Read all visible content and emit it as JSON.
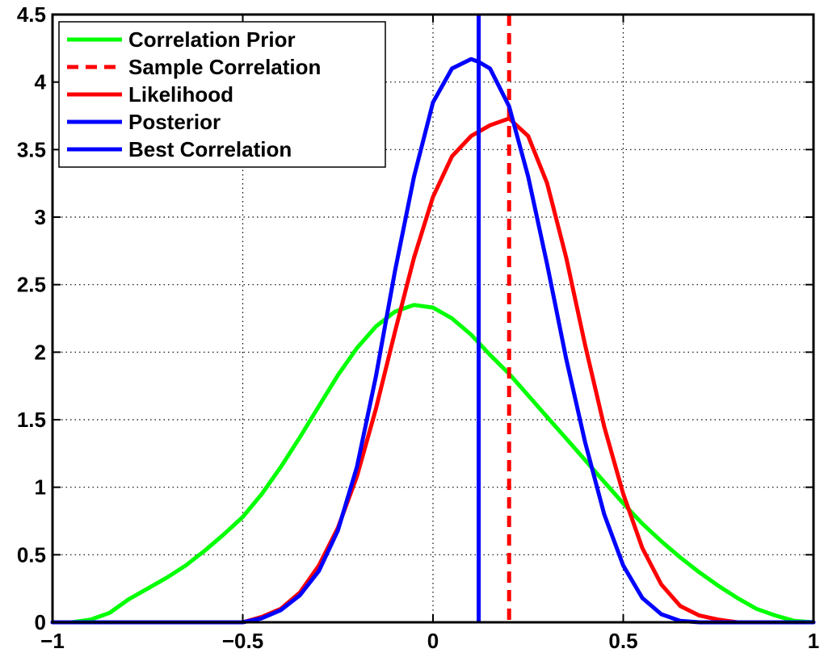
{
  "chart_data": {
    "type": "line",
    "title": "",
    "xlabel": "",
    "ylabel": "",
    "xlim": [
      -1,
      1
    ],
    "ylim": [
      0,
      4.5
    ],
    "grid": true,
    "legend_position": "top-left",
    "x_ticks": [
      -1,
      -0.5,
      0,
      0.5,
      1
    ],
    "x_tick_labels": [
      "−1",
      "−0.5",
      "0",
      "0.5",
      "1"
    ],
    "y_ticks": [
      0,
      0.5,
      1,
      1.5,
      2,
      2.5,
      3,
      3.5,
      4,
      4.5
    ],
    "y_tick_labels": [
      "0",
      "0.5",
      "1",
      "1.5",
      "2",
      "2.5",
      "3",
      "3.5",
      "4",
      "4.5"
    ],
    "series": [
      {
        "name": "Correlation Prior",
        "kind": "curve",
        "color": "#00ff00",
        "style": "solid",
        "x": [
          -1.0,
          -0.95,
          -0.9,
          -0.85,
          -0.8,
          -0.75,
          -0.7,
          -0.65,
          -0.6,
          -0.55,
          -0.5,
          -0.45,
          -0.4,
          -0.35,
          -0.3,
          -0.25,
          -0.2,
          -0.15,
          -0.1,
          -0.05,
          0.0,
          0.05,
          0.1,
          0.15,
          0.2,
          0.25,
          0.3,
          0.35,
          0.4,
          0.45,
          0.5,
          0.55,
          0.6,
          0.65,
          0.7,
          0.75,
          0.8,
          0.85,
          0.9,
          0.95,
          1.0
        ],
        "y": [
          0.0,
          0.0,
          0.02,
          0.07,
          0.17,
          0.25,
          0.33,
          0.42,
          0.53,
          0.65,
          0.78,
          0.95,
          1.15,
          1.37,
          1.6,
          1.83,
          2.03,
          2.19,
          2.3,
          2.35,
          2.33,
          2.25,
          2.13,
          1.98,
          1.84,
          1.68,
          1.52,
          1.36,
          1.2,
          1.04,
          0.88,
          0.73,
          0.6,
          0.48,
          0.37,
          0.27,
          0.18,
          0.1,
          0.05,
          0.01,
          0.0
        ]
      },
      {
        "name": "Sample Correlation",
        "kind": "vline",
        "color": "#ff0000",
        "style": "dashed",
        "x_value": 0.2
      },
      {
        "name": "Likelihood",
        "kind": "curve",
        "color": "#ff0000",
        "style": "solid",
        "x": [
          -1.0,
          -0.5,
          -0.45,
          -0.4,
          -0.35,
          -0.3,
          -0.25,
          -0.2,
          -0.15,
          -0.1,
          -0.05,
          0.0,
          0.05,
          0.1,
          0.15,
          0.2,
          0.25,
          0.3,
          0.35,
          0.4,
          0.45,
          0.5,
          0.55,
          0.6,
          0.65,
          0.7,
          0.75,
          0.8,
          1.0
        ],
        "y": [
          0.0,
          0.0,
          0.04,
          0.1,
          0.22,
          0.42,
          0.7,
          1.08,
          1.58,
          2.15,
          2.7,
          3.15,
          3.45,
          3.6,
          3.68,
          3.73,
          3.6,
          3.25,
          2.7,
          2.05,
          1.45,
          0.95,
          0.55,
          0.28,
          0.12,
          0.05,
          0.02,
          0.0,
          0.0
        ]
      },
      {
        "name": "Posterior",
        "kind": "curve",
        "color": "#0000ff",
        "style": "solid",
        "x": [
          -1.0,
          -0.5,
          -0.45,
          -0.4,
          -0.35,
          -0.3,
          -0.25,
          -0.2,
          -0.15,
          -0.1,
          -0.05,
          0.0,
          0.05,
          0.1,
          0.12,
          0.15,
          0.2,
          0.25,
          0.3,
          0.35,
          0.4,
          0.45,
          0.5,
          0.55,
          0.6,
          0.65,
          0.7,
          1.0
        ],
        "y": [
          0.0,
          0.0,
          0.03,
          0.09,
          0.2,
          0.38,
          0.68,
          1.15,
          1.82,
          2.6,
          3.3,
          3.85,
          4.1,
          4.17,
          4.15,
          4.1,
          3.82,
          3.3,
          2.65,
          1.95,
          1.33,
          0.8,
          0.42,
          0.18,
          0.06,
          0.01,
          0.0,
          0.0
        ]
      },
      {
        "name": "Best Correlation",
        "kind": "vline",
        "color": "#0000ff",
        "style": "solid",
        "x_value": 0.12
      }
    ]
  }
}
